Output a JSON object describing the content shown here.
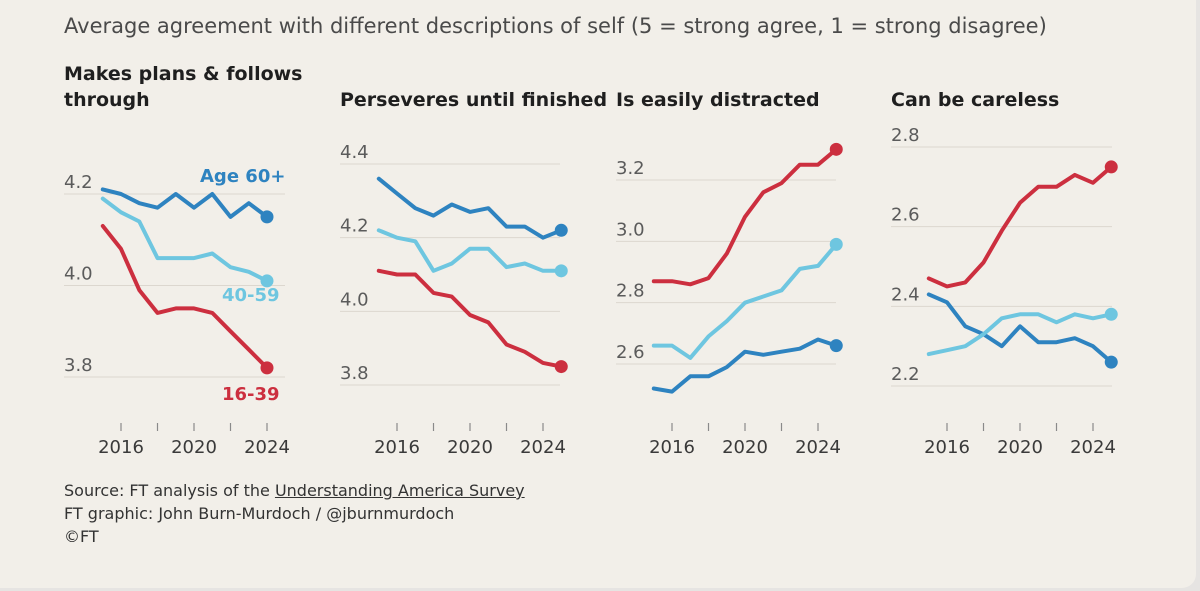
{
  "subtitle": "Average agreement with different descriptions of self (5 = strong agree, 1 = strong disagree)",
  "footer": {
    "source_prefix": "Source: FT analysis of the ",
    "source_link": "Understanding America Survey",
    "credit": "FT graphic: John Burn-Murdoch / @jburnmurdoch",
    "copyright": "©FT"
  },
  "colors": {
    "age_60_plus": "#2e83c0",
    "age_40_59": "#6ec6e0",
    "age_16_39": "#cc2f3f"
  },
  "chart_data": [
    {
      "type": "line",
      "title_lines": [
        "Makes plans & follows",
        "through"
      ],
      "x": [
        2015,
        2016,
        2017,
        2018,
        2019,
        2020,
        2021,
        2022,
        2023,
        2024,
        2025
      ],
      "x_ticks": [
        2016,
        2020,
        2024
      ],
      "x_tick_labels": [
        "2016",
        "2020",
        "2024"
      ],
      "ylim": [
        3.7,
        4.32
      ],
      "y_ticks": [
        3.8,
        4.0,
        4.2
      ],
      "y_tick_labels": [
        "3.8",
        "4.0",
        "4.2"
      ],
      "series": [
        {
          "name": "Age 60+",
          "color_key": "age_60_plus",
          "values": [
            4.21,
            4.2,
            4.18,
            4.17,
            4.2,
            4.17,
            4.2,
            4.15,
            4.18,
            4.15,
            null
          ],
          "label": "Age 60+"
        },
        {
          "name": "40-59",
          "color_key": "age_40_59",
          "values": [
            4.19,
            4.16,
            4.14,
            4.06,
            4.06,
            4.06,
            4.07,
            4.04,
            4.03,
            4.01,
            null
          ],
          "label": "40-59"
        },
        {
          "name": "16-39",
          "color_key": "age_16_39",
          "values": [
            4.13,
            4.08,
            3.99,
            3.94,
            3.95,
            3.95,
            3.94,
            3.9,
            3.86,
            3.82,
            null
          ],
          "label": "16-39"
        }
      ]
    },
    {
      "type": "line",
      "title_lines": [
        "Perseveres until finished"
      ],
      "x": [
        2015,
        2016,
        2017,
        2018,
        2019,
        2020,
        2021,
        2022,
        2023,
        2024,
        2025
      ],
      "x_ticks": [
        2016,
        2020,
        2024
      ],
      "x_tick_labels": [
        "2016",
        "2020",
        "2024"
      ],
      "ylim": [
        3.72,
        4.45
      ],
      "y_ticks": [
        3.8,
        4.0,
        4.2,
        4.4
      ],
      "y_tick_labels": [
        "3.8",
        "4.0",
        "4.2",
        "4.4"
      ],
      "series": [
        {
          "name": "Age 60+",
          "color_key": "age_60_plus",
          "values": [
            4.36,
            4.32,
            4.28,
            4.26,
            4.29,
            4.27,
            4.28,
            4.23,
            4.23,
            4.2,
            4.22
          ]
        },
        {
          "name": "40-59",
          "color_key": "age_40_59",
          "values": [
            4.22,
            4.2,
            4.19,
            4.11,
            4.13,
            4.17,
            4.17,
            4.12,
            4.13,
            4.11,
            4.11
          ]
        },
        {
          "name": "16-39",
          "color_key": "age_16_39",
          "values": [
            4.11,
            4.1,
            4.1,
            4.05,
            4.04,
            3.99,
            3.97,
            3.91,
            3.89,
            3.86,
            3.85
          ]
        }
      ]
    },
    {
      "type": "line",
      "title_lines": [
        "Is easily distracted"
      ],
      "x": [
        2015,
        2016,
        2017,
        2018,
        2019,
        2020,
        2021,
        2022,
        2023,
        2024,
        2025
      ],
      "x_ticks": [
        2016,
        2020,
        2024
      ],
      "x_tick_labels": [
        "2016",
        "2020",
        "2024"
      ],
      "ylim": [
        2.47,
        3.34
      ],
      "y_ticks": [
        2.6,
        2.8,
        3.0,
        3.2
      ],
      "y_tick_labels": [
        "2.6",
        "2.8",
        "3.0",
        "3.2"
      ],
      "series": [
        {
          "name": "Age 60+",
          "color_key": "age_60_plus",
          "values": [
            2.52,
            2.51,
            2.56,
            2.56,
            2.59,
            2.64,
            2.63,
            2.64,
            2.65,
            2.68,
            2.66
          ]
        },
        {
          "name": "40-59",
          "color_key": "age_40_59",
          "values": [
            2.66,
            2.66,
            2.62,
            2.69,
            2.74,
            2.8,
            2.82,
            2.84,
            2.91,
            2.92,
            2.99
          ]
        },
        {
          "name": "16-39",
          "color_key": "age_16_39",
          "values": [
            2.87,
            2.87,
            2.86,
            2.88,
            2.96,
            3.08,
            3.16,
            3.19,
            3.25,
            3.25,
            3.3
          ]
        }
      ]
    },
    {
      "type": "line",
      "title_lines": [
        "Can be careless"
      ],
      "x": [
        2015,
        2016,
        2017,
        2018,
        2019,
        2020,
        2021,
        2022,
        2023,
        2024,
        2025
      ],
      "x_ticks": [
        2016,
        2020,
        2024
      ],
      "x_tick_labels": [
        "2016",
        "2020",
        "2024"
      ],
      "ylim": [
        2.15,
        2.84
      ],
      "y_ticks": [
        2.2,
        2.4,
        2.6,
        2.8
      ],
      "y_tick_labels": [
        "2.2",
        "2.4",
        "2.6",
        "2.8"
      ],
      "series": [
        {
          "name": "Age 60+",
          "color_key": "age_60_plus",
          "values": [
            2.43,
            2.41,
            2.35,
            2.33,
            2.3,
            2.35,
            2.31,
            2.31,
            2.32,
            2.3,
            2.26
          ]
        },
        {
          "name": "40-59",
          "color_key": "age_40_59",
          "values": [
            2.28,
            2.29,
            2.3,
            2.33,
            2.37,
            2.38,
            2.38,
            2.36,
            2.38,
            2.37,
            2.38
          ]
        },
        {
          "name": "16-39",
          "color_key": "age_16_39",
          "values": [
            2.47,
            2.45,
            2.46,
            2.51,
            2.59,
            2.66,
            2.7,
            2.7,
            2.73,
            2.71,
            2.75
          ]
        }
      ]
    }
  ]
}
